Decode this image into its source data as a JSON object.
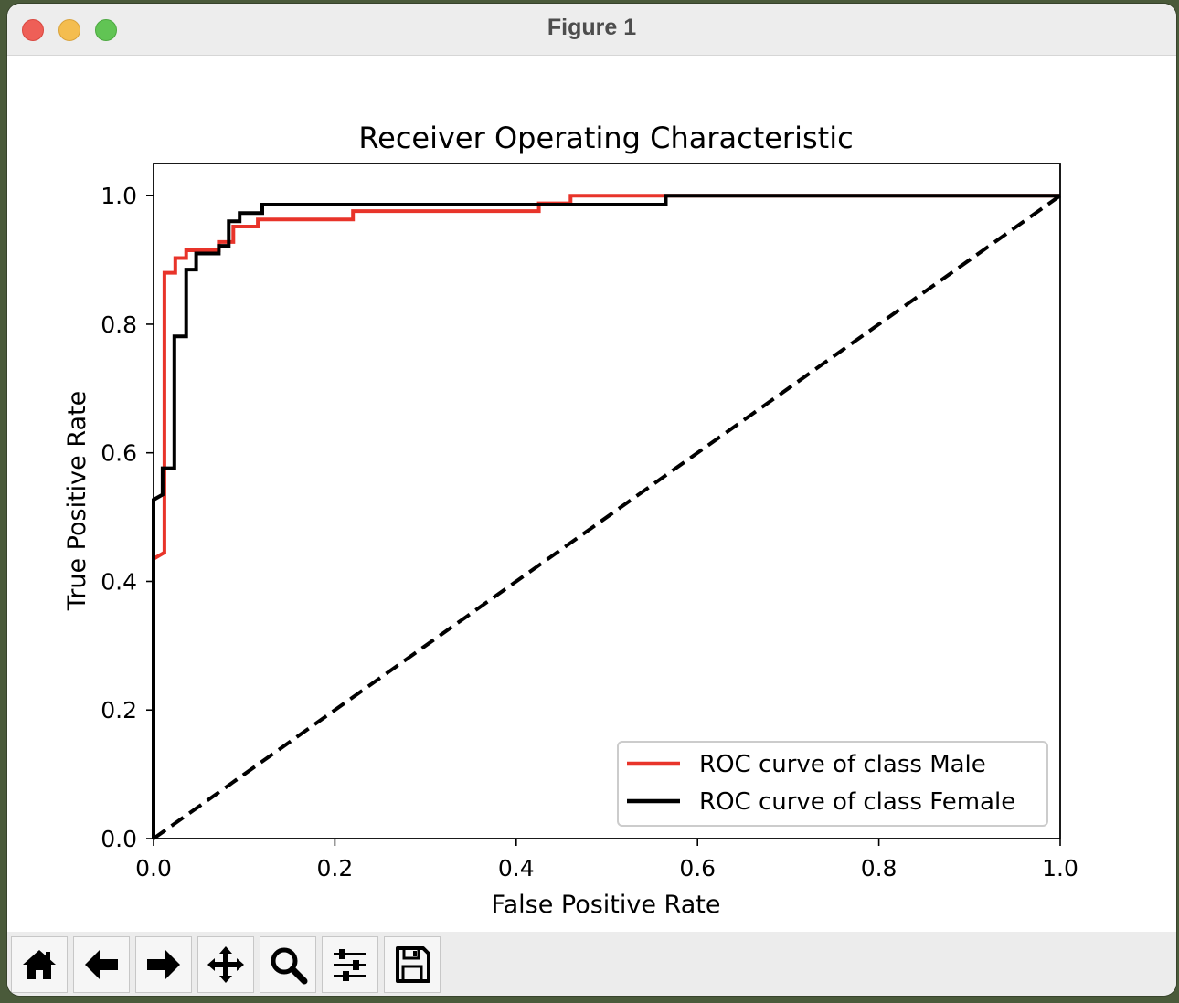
{
  "window": {
    "title": "Figure 1"
  },
  "toolbar": {
    "tools": [
      {
        "name": "home-icon"
      },
      {
        "name": "back-arrow-icon"
      },
      {
        "name": "forward-arrow-icon"
      },
      {
        "name": "pan-icon"
      },
      {
        "name": "zoom-icon"
      },
      {
        "name": "configure-subplots-icon"
      },
      {
        "name": "save-icon"
      }
    ]
  },
  "chart_data": {
    "type": "line",
    "title": "Receiver Operating Characteristic",
    "xlabel": "False Positive Rate",
    "ylabel": "True Positive Rate",
    "xlim": [
      0.0,
      1.0
    ],
    "ylim": [
      0.0,
      1.05
    ],
    "xticks": [
      "0.0",
      "0.2",
      "0.4",
      "0.6",
      "0.8",
      "1.0"
    ],
    "yticks": [
      "0.0",
      "0.2",
      "0.4",
      "0.6",
      "0.8",
      "1.0"
    ],
    "grid": false,
    "legend_position": "lower right",
    "series": [
      {
        "name": "ROC curve of class Male",
        "color": "#e8342a",
        "style": "solid",
        "x": [
          0.0,
          0.0,
          0.012,
          0.012,
          0.024,
          0.024,
          0.036,
          0.036,
          0.072,
          0.072,
          0.088,
          0.088,
          0.115,
          0.115,
          0.22,
          0.22,
          0.425,
          0.425,
          0.46,
          0.46,
          1.0
        ],
        "y": [
          0.0,
          0.435,
          0.445,
          0.88,
          0.88,
          0.903,
          0.903,
          0.915,
          0.915,
          0.928,
          0.928,
          0.952,
          0.952,
          0.963,
          0.963,
          0.976,
          0.976,
          0.988,
          0.988,
          1.0,
          1.0
        ]
      },
      {
        "name": "ROC curve of class Female",
        "color": "#000000",
        "style": "solid",
        "x": [
          0.0,
          0.0,
          0.01,
          0.01,
          0.023,
          0.023,
          0.036,
          0.036,
          0.047,
          0.047,
          0.072,
          0.072,
          0.083,
          0.083,
          0.095,
          0.095,
          0.12,
          0.12,
          0.565,
          0.565,
          1.0
        ],
        "y": [
          0.0,
          0.527,
          0.535,
          0.576,
          0.576,
          0.781,
          0.781,
          0.885,
          0.885,
          0.91,
          0.91,
          0.922,
          0.922,
          0.96,
          0.96,
          0.973,
          0.973,
          0.986,
          0.986,
          1.0,
          1.0
        ]
      },
      {
        "name": "",
        "color": "#000000",
        "style": "dashed",
        "x": [
          0.0,
          1.0
        ],
        "y": [
          0.0,
          1.0
        ]
      }
    ]
  }
}
